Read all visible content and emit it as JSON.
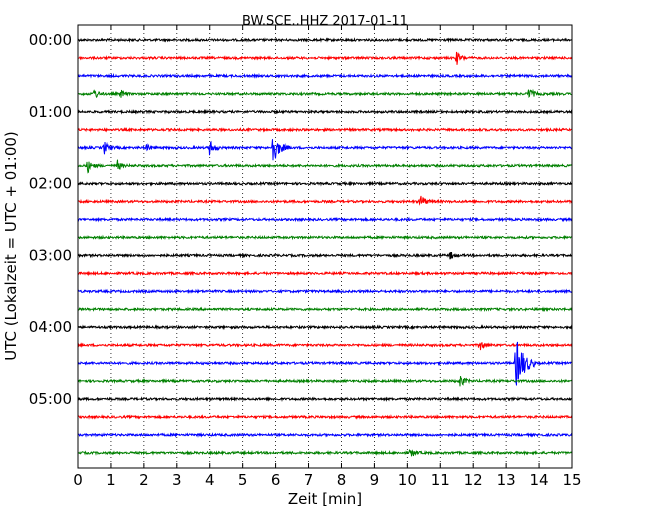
{
  "chart_data": {
    "type": "line",
    "title": "BW.SCE..HHZ 2017-01-11",
    "xlabel": "Zeit  [min]",
    "ylabel": "UTC (Lokalzeit = UTC + 01:00)",
    "xlim": [
      0,
      15
    ],
    "x_ticks": [
      "0",
      "1",
      "2",
      "3",
      "4",
      "5",
      "6",
      "7",
      "8",
      "9",
      "10",
      "11",
      "12",
      "13",
      "14",
      "15"
    ],
    "y_ticks": [
      "00:00",
      "01:00",
      "02:00",
      "03:00",
      "04:00",
      "05:00"
    ],
    "trace_interval_min": 15,
    "grid": "vertical dotted",
    "trace_colors": [
      "#000000",
      "#ff0000",
      "#0000ff",
      "#008000"
    ],
    "traces": [
      {
        "start": "00:00",
        "events": []
      },
      {
        "start": "00:15",
        "events": [
          {
            "t": 11.5,
            "amp": 0.5
          }
        ]
      },
      {
        "start": "00:30",
        "events": []
      },
      {
        "start": "00:45",
        "events": [
          {
            "t": 0.5,
            "amp": 0.4
          },
          {
            "t": 1.3,
            "amp": 0.3
          },
          {
            "t": 13.7,
            "amp": 0.5
          }
        ]
      },
      {
        "start": "01:00",
        "events": []
      },
      {
        "start": "01:15",
        "events": []
      },
      {
        "start": "01:30",
        "events": [
          {
            "t": 0.8,
            "amp": 0.5
          },
          {
            "t": 2.1,
            "amp": 0.3
          },
          {
            "t": 4.0,
            "amp": 0.6
          },
          {
            "t": 5.9,
            "amp": 1.3
          }
        ]
      },
      {
        "start": "01:45",
        "events": [
          {
            "t": 0.3,
            "amp": 0.5
          },
          {
            "t": 1.2,
            "amp": 0.4
          }
        ]
      },
      {
        "start": "02:00",
        "events": []
      },
      {
        "start": "02:15",
        "events": [
          {
            "t": 10.4,
            "amp": 0.6
          }
        ]
      },
      {
        "start": "02:30",
        "events": []
      },
      {
        "start": "02:45",
        "events": []
      },
      {
        "start": "03:00",
        "events": [
          {
            "t": 11.3,
            "amp": 0.3
          }
        ]
      },
      {
        "start": "03:15",
        "events": []
      },
      {
        "start": "03:30",
        "events": []
      },
      {
        "start": "03:45",
        "events": []
      },
      {
        "start": "04:00",
        "events": []
      },
      {
        "start": "04:15",
        "events": [
          {
            "t": 12.2,
            "amp": 0.5
          }
        ]
      },
      {
        "start": "04:30",
        "events": [
          {
            "t": 13.3,
            "amp": 2.0
          }
        ]
      },
      {
        "start": "04:45",
        "events": [
          {
            "t": 11.6,
            "amp": 0.5
          }
        ]
      },
      {
        "start": "05:00",
        "events": []
      },
      {
        "start": "05:15",
        "events": []
      },
      {
        "start": "05:30",
        "events": []
      },
      {
        "start": "05:45",
        "events": [
          {
            "t": 10.1,
            "amp": 0.4
          }
        ]
      }
    ]
  }
}
